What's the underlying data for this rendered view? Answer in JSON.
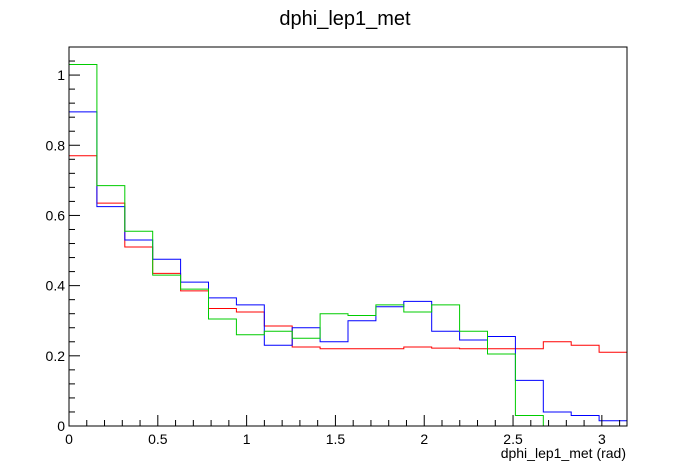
{
  "chart_data": {
    "type": "line",
    "title": "dphi_lep1_met",
    "xlabel": "dphi_lep1_met (rad)",
    "ylabel": "",
    "xlim": [
      0,
      3.1416
    ],
    "ylim": [
      0,
      1.08
    ],
    "x_ticks": [
      0,
      0.5,
      1,
      1.5,
      2,
      2.5,
      3
    ],
    "x_tick_labels": [
      "0",
      "0.5",
      "1",
      "1.5",
      "2",
      "2.5",
      "3"
    ],
    "y_ticks": [
      0,
      0.2,
      0.4,
      0.6,
      0.8,
      1
    ],
    "y_tick_labels": [
      "0",
      "0.2",
      "0.4",
      "0.6",
      "0.8",
      "1"
    ],
    "grid": false,
    "bin_edges": [
      0,
      0.1571,
      0.3142,
      0.4712,
      0.6283,
      0.7854,
      0.9425,
      1.0996,
      1.2566,
      1.4137,
      1.5708,
      1.7279,
      1.885,
      2.042,
      2.1991,
      2.3562,
      2.5133,
      2.6704,
      2.8274,
      2.9845,
      3.1416
    ],
    "series": [
      {
        "color": "#ff0000",
        "values": [
          0.77,
          0.635,
          0.51,
          0.435,
          0.385,
          0.335,
          0.325,
          0.285,
          0.225,
          0.22,
          0.22,
          0.22,
          0.225,
          0.222,
          0.22,
          0.22,
          0.22,
          0.24,
          0.23,
          0.21
        ]
      },
      {
        "color": "#0000ff",
        "values": [
          0.895,
          0.625,
          0.53,
          0.475,
          0.41,
          0.365,
          0.345,
          0.23,
          0.28,
          0.24,
          0.3,
          0.34,
          0.355,
          0.27,
          0.245,
          0.255,
          0.13,
          0.04,
          0.03,
          0.015
        ]
      },
      {
        "color": "#00cc00",
        "values": [
          1.03,
          0.685,
          0.555,
          0.43,
          0.39,
          0.305,
          0.26,
          0.27,
          0.25,
          0.32,
          0.315,
          0.345,
          0.325,
          0.345,
          0.27,
          0.205,
          0.03,
          0.0,
          0.0,
          0.0
        ]
      }
    ]
  }
}
